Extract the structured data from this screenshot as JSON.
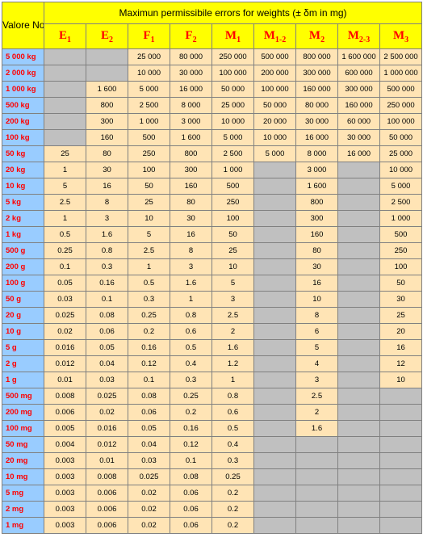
{
  "title": "Maximun permissibile errors for weights (± δm in mg)",
  "rowhead": "Valore Nominale della Massa",
  "classHeaders": [
    {
      "label": "E",
      "sub": "1"
    },
    {
      "label": "E",
      "sub": "2"
    },
    {
      "label": "F",
      "sub": "1"
    },
    {
      "label": "F",
      "sub": "2"
    },
    {
      "label": "M",
      "sub": "1"
    },
    {
      "label": "M",
      "sub": "1-2"
    },
    {
      "label": "M",
      "sub": "2"
    },
    {
      "label": "M",
      "sub": "2-3"
    },
    {
      "label": "M",
      "sub": "3"
    }
  ],
  "colors": {
    "cream": "#ffe4b5",
    "grey": "#c0c0c0",
    "header_bg": "#ffff00",
    "rowhead_bg": "#99ccff",
    "accent_red": "#ff0000",
    "accent_blue": "#000099"
  },
  "rows": [
    {
      "m": "5 000 kg",
      "v": [
        null,
        null,
        "25 000",
        "80 000",
        "250 000",
        "500 000",
        "800 000",
        "1 600 000",
        "2 500 000"
      ]
    },
    {
      "m": "2 000 kg",
      "v": [
        null,
        null,
        "10 000",
        "30 000",
        "100 000",
        "200 000",
        "300 000",
        "600 000",
        "1 000 000"
      ]
    },
    {
      "m": "1 000 kg",
      "v": [
        null,
        "1 600",
        "5 000",
        "16 000",
        "50 000",
        "100 000",
        "160 000",
        "300 000",
        "500 000"
      ]
    },
    {
      "m": "500 kg",
      "v": [
        null,
        "800",
        "2 500",
        "8 000",
        "25 000",
        "50 000",
        "80 000",
        "160 000",
        "250 000"
      ]
    },
    {
      "m": "200 kg",
      "v": [
        null,
        "300",
        "1 000",
        "3 000",
        "10 000",
        "20 000",
        "30 000",
        "60 000",
        "100 000"
      ]
    },
    {
      "m": "100 kg",
      "v": [
        null,
        "160",
        "500",
        "1 600",
        "5 000",
        "10 000",
        "16 000",
        "30 000",
        "50 000"
      ]
    },
    {
      "m": "50 kg",
      "v": [
        "25",
        "80",
        "250",
        "800",
        "2 500",
        "5 000",
        "8 000",
        "16 000",
        "25 000"
      ]
    },
    {
      "m": "20 kg",
      "v": [
        "1",
        "30",
        "100",
        "300",
        "1 000",
        null,
        "3 000",
        null,
        "10 000"
      ]
    },
    {
      "m": "10 kg",
      "v": [
        "5",
        "16",
        "50",
        "160",
        "500",
        null,
        "1 600",
        null,
        "5 000"
      ]
    },
    {
      "m": "5 kg",
      "v": [
        "2.5",
        "8",
        "25",
        "80",
        "250",
        null,
        "800",
        null,
        "2 500"
      ]
    },
    {
      "m": "2 kg",
      "v": [
        "1",
        "3",
        "10",
        "30",
        "100",
        null,
        "300",
        null,
        "1 000"
      ]
    },
    {
      "m": "1 kg",
      "v": [
        "0.5",
        "1.6",
        "5",
        "16",
        "50",
        null,
        "160",
        null,
        "500"
      ]
    },
    {
      "m": "500 g",
      "v": [
        "0.25",
        "0.8",
        "2.5",
        "8",
        "25",
        null,
        "80",
        null,
        "250"
      ]
    },
    {
      "m": "200 g",
      "v": [
        "0.1",
        "0.3",
        "1",
        "3",
        "10",
        null,
        "30",
        null,
        "100"
      ]
    },
    {
      "m": "100 g",
      "v": [
        "0.05",
        "0.16",
        "0.5",
        "1.6",
        "5",
        null,
        "16",
        null,
        "50"
      ]
    },
    {
      "m": "50 g",
      "v": [
        "0.03",
        "0.1",
        "0.3",
        "1",
        "3",
        null,
        "10",
        null,
        "30"
      ]
    },
    {
      "m": "20 g",
      "v": [
        "0.025",
        "0.08",
        "0.25",
        "0.8",
        "2.5",
        null,
        "8",
        null,
        "25"
      ]
    },
    {
      "m": "10 g",
      "v": [
        "0.02",
        "0.06",
        "0.2",
        "0.6",
        "2",
        null,
        "6",
        null,
        "20"
      ]
    },
    {
      "m": "5 g",
      "v": [
        "0.016",
        "0.05",
        "0.16",
        "0.5",
        "1.6",
        null,
        "5",
        null,
        "16"
      ]
    },
    {
      "m": "2 g",
      "v": [
        "0.012",
        "0.04",
        "0.12",
        "0.4",
        "1.2",
        null,
        "4",
        null,
        "12"
      ]
    },
    {
      "m": "1 g",
      "v": [
        "0.01",
        "0.03",
        "0.1",
        "0.3",
        "1",
        null,
        "3",
        null,
        "10"
      ]
    },
    {
      "m": "500 mg",
      "v": [
        "0.008",
        "0.025",
        "0.08",
        "0.25",
        "0.8",
        null,
        "2.5",
        null,
        null
      ]
    },
    {
      "m": "200 mg",
      "v": [
        "0.006",
        "0.02",
        "0.06",
        "0.2",
        "0.6",
        null,
        "2",
        null,
        null
      ]
    },
    {
      "m": "100 mg",
      "v": [
        "0.005",
        "0.016",
        "0.05",
        "0.16",
        "0.5",
        null,
        "1.6",
        null,
        null
      ]
    },
    {
      "m": "50 mg",
      "v": [
        "0.004",
        "0.012",
        "0.04",
        "0.12",
        "0.4",
        null,
        null,
        null,
        null
      ]
    },
    {
      "m": "20 mg",
      "v": [
        "0.003",
        "0.01",
        "0.03",
        "0.1",
        "0.3",
        null,
        null,
        null,
        null
      ]
    },
    {
      "m": "10 mg",
      "v": [
        "0.003",
        "0.008",
        "0.025",
        "0.08",
        "0.25",
        null,
        null,
        null,
        null
      ]
    },
    {
      "m": "5 mg",
      "v": [
        "0.003",
        "0.006",
        "0.02",
        "0.06",
        "0.2",
        null,
        null,
        null,
        null
      ]
    },
    {
      "m": "2 mg",
      "v": [
        "0.003",
        "0.006",
        "0.02",
        "0.06",
        "0.2",
        null,
        null,
        null,
        null
      ]
    },
    {
      "m": "1 mg",
      "v": [
        "0.003",
        "0.006",
        "0.02",
        "0.06",
        "0.2",
        null,
        null,
        null,
        null
      ]
    }
  ]
}
